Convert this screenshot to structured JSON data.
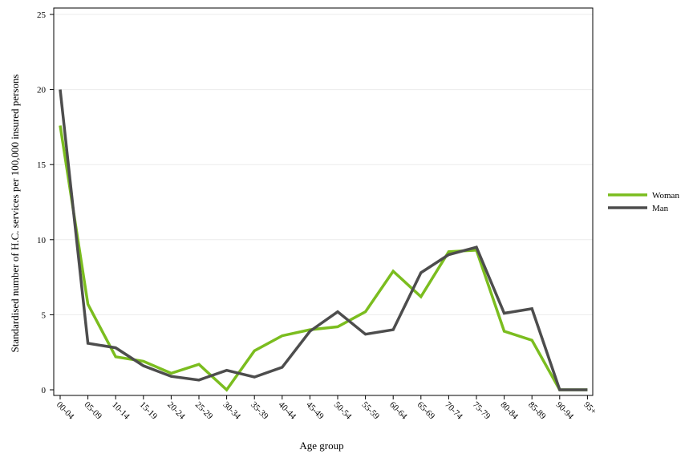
{
  "chart_data": {
    "type": "line",
    "title": "",
    "xlabel": "Age group",
    "ylabel": "Standardised number of H.C. services per 100,000 insured persons",
    "ylim": [
      0,
      25
    ],
    "yticks": [
      0,
      5,
      10,
      15,
      20,
      25
    ],
    "grid": "horizontal",
    "legend_position": "right",
    "categories": [
      "00-04",
      "05-09",
      "10-14",
      "15-19",
      "20-24",
      "25-29",
      "30-34",
      "35-39",
      "40-44",
      "45-49",
      "50-54",
      "55-59",
      "60-64",
      "65-69",
      "70-74",
      "75-79",
      "80-84",
      "85-89",
      "90-94",
      "95+"
    ],
    "series": [
      {
        "name": "Woman",
        "color": "#7bbd1f",
        "values": [
          17.6,
          5.7,
          2.2,
          1.9,
          1.1,
          1.7,
          0.0,
          2.6,
          3.6,
          4.0,
          4.2,
          5.2,
          7.9,
          6.2,
          9.2,
          9.3,
          3.9,
          3.3,
          0.0,
          0.0
        ]
      },
      {
        "name": "Man",
        "color": "#4d4d4d",
        "values": [
          20.0,
          3.1,
          2.8,
          1.6,
          0.9,
          0.65,
          1.3,
          0.85,
          1.5,
          3.9,
          5.2,
          3.7,
          4.0,
          7.8,
          9.0,
          9.5,
          5.1,
          5.4,
          0.0,
          0.0
        ]
      }
    ]
  }
}
